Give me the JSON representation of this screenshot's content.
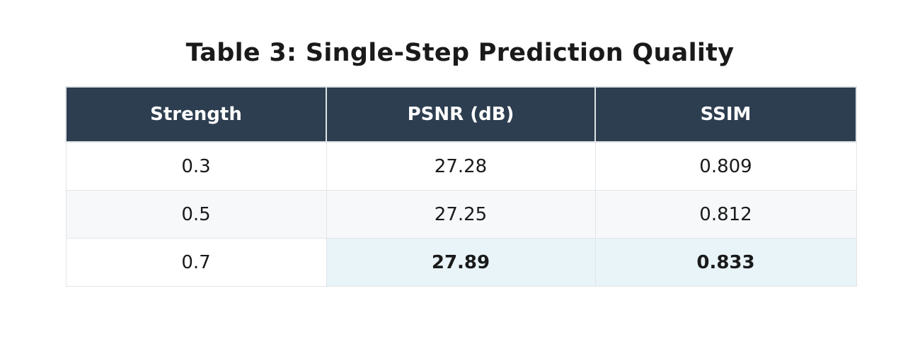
{
  "chart_data": {
    "type": "table",
    "title": "Table 3: Single-Step Prediction Quality",
    "columns": [
      "Strength",
      "PSNR (dB)",
      "SSIM"
    ],
    "rows": [
      [
        "0.3",
        "27.28",
        "0.809"
      ],
      [
        "0.5",
        "27.25",
        "0.812"
      ],
      [
        "0.7",
        "27.89",
        "0.833"
      ]
    ],
    "best": {
      "row": 2,
      "columns": [
        1,
        2
      ]
    },
    "colors": {
      "header_background": "#2d3e50",
      "header_text": "#ffffff",
      "stripe": "#f7f8fa",
      "highlight": "#e8f4f8"
    }
  }
}
